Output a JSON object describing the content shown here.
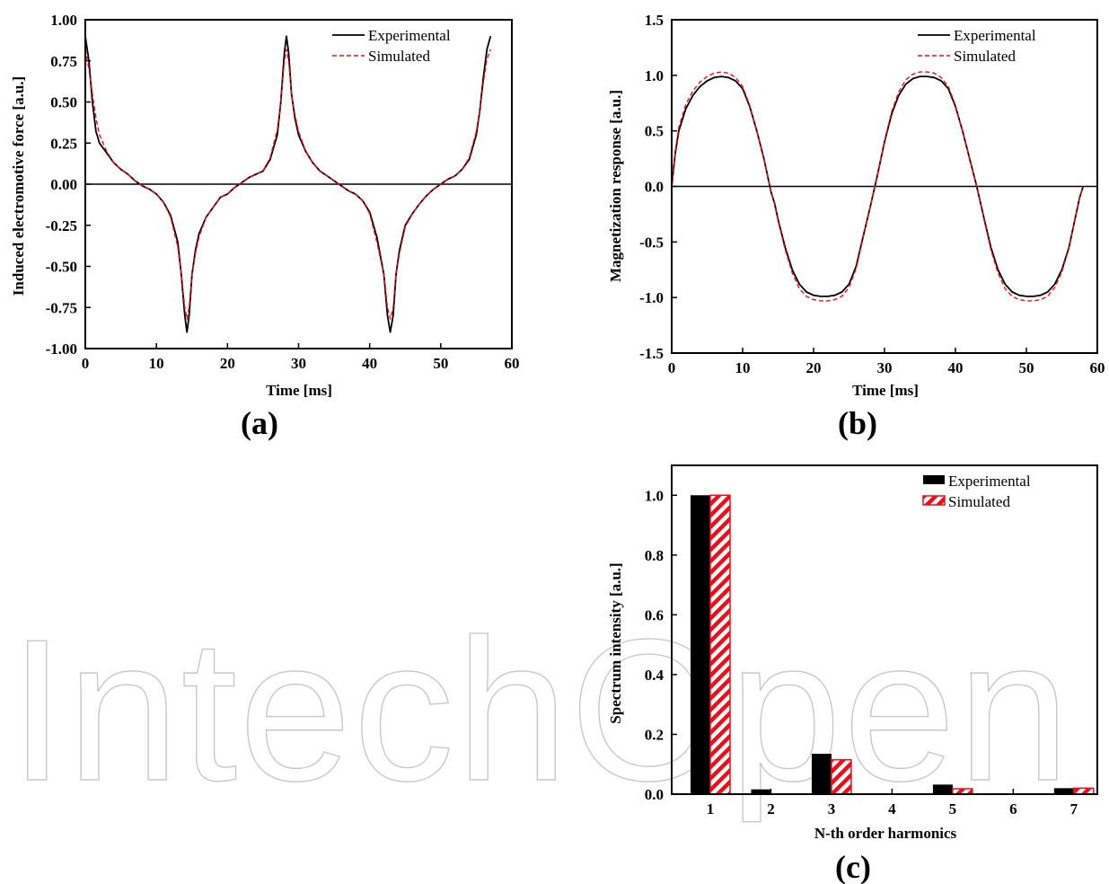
{
  "watermark": "IntechOpen",
  "colors": {
    "experimental": "#000000",
    "simulated": "#e8101c"
  },
  "chart_data": [
    {
      "id": "a",
      "type": "line",
      "panel_label": "(a)",
      "xlabel": "Time [ms]",
      "ylabel": "Induced electromotive force [a.u.]",
      "xlim": [
        0,
        60
      ],
      "ylim": [
        -1.0,
        1.0
      ],
      "xticks": [
        "0",
        "10",
        "20",
        "30",
        "40",
        "50",
        "60"
      ],
      "yticks": [
        "-1.00",
        "-0.75",
        "-0.50",
        "-0.25",
        "0.00",
        "0.25",
        "0.50",
        "0.75",
        "1.00"
      ],
      "zero_line": true,
      "legend": {
        "position": "top-right",
        "entries": [
          "Experimental",
          "Simulated"
        ]
      },
      "series": [
        {
          "name": "Experimental",
          "style": "solid",
          "x": [
            0,
            0.5,
            1,
            1.5,
            2,
            3,
            4,
            5,
            6,
            7,
            8,
            9,
            10,
            11,
            12,
            13,
            13.5,
            14,
            14.3,
            14.6,
            15,
            15.5,
            16,
            17,
            18,
            19,
            20,
            21,
            22,
            23,
            24,
            25,
            26,
            27,
            27.5,
            28,
            28.3,
            28.6,
            29,
            29.5,
            30,
            31,
            32,
            33,
            34,
            35,
            36,
            37,
            38,
            39,
            40,
            41,
            42,
            42.5,
            42.9,
            43.3,
            43.7,
            44.2,
            45,
            46,
            47,
            48,
            49,
            50,
            51,
            52,
            53,
            54,
            55,
            55.5,
            56,
            56.5,
            57
          ],
          "y": [
            0.9,
            0.75,
            0.5,
            0.32,
            0.25,
            0.19,
            0.13,
            0.09,
            0.06,
            0.02,
            -0.01,
            -0.03,
            -0.06,
            -0.11,
            -0.19,
            -0.35,
            -0.55,
            -0.8,
            -0.9,
            -0.8,
            -0.55,
            -0.4,
            -0.3,
            -0.2,
            -0.14,
            -0.08,
            -0.06,
            -0.02,
            0.01,
            0.04,
            0.06,
            0.08,
            0.15,
            0.3,
            0.5,
            0.8,
            0.9,
            0.8,
            0.55,
            0.4,
            0.3,
            0.2,
            0.13,
            0.08,
            0.05,
            0.02,
            -0.01,
            -0.04,
            -0.06,
            -0.1,
            -0.17,
            -0.32,
            -0.55,
            -0.8,
            -0.9,
            -0.8,
            -0.55,
            -0.4,
            -0.25,
            -0.18,
            -0.12,
            -0.07,
            -0.03,
            0.0,
            0.03,
            0.05,
            0.09,
            0.15,
            0.3,
            0.45,
            0.65,
            0.82,
            0.9
          ]
        },
        {
          "name": "Simulated",
          "style": "dashed",
          "x": [
            0,
            0.5,
            1,
            1.5,
            2,
            3,
            4,
            5,
            6,
            7,
            8,
            9,
            10,
            11,
            12,
            13,
            13.5,
            14,
            14.3,
            14.6,
            15,
            15.5,
            16,
            17,
            18,
            19,
            20,
            21,
            22,
            23,
            24,
            25,
            26,
            27,
            27.5,
            28,
            28.3,
            28.6,
            29,
            29.5,
            30,
            31,
            32,
            33,
            34,
            35,
            36,
            37,
            38,
            39,
            40,
            41,
            42,
            42.5,
            42.9,
            43.3,
            43.7,
            44.2,
            45,
            46,
            47,
            48,
            49,
            50,
            51,
            52,
            53,
            54,
            55,
            55.5,
            56,
            56.5,
            57
          ],
          "y": [
            0.82,
            0.7,
            0.55,
            0.4,
            0.3,
            0.2,
            0.13,
            0.09,
            0.06,
            0.02,
            -0.01,
            -0.03,
            -0.06,
            -0.11,
            -0.2,
            -0.38,
            -0.55,
            -0.75,
            -0.82,
            -0.75,
            -0.55,
            -0.42,
            -0.32,
            -0.2,
            -0.14,
            -0.08,
            -0.06,
            -0.02,
            0.01,
            0.04,
            0.06,
            0.08,
            0.16,
            0.33,
            0.5,
            0.75,
            0.82,
            0.75,
            0.55,
            0.42,
            0.32,
            0.2,
            0.13,
            0.08,
            0.05,
            0.02,
            -0.01,
            -0.04,
            -0.06,
            -0.1,
            -0.18,
            -0.35,
            -0.55,
            -0.75,
            -0.82,
            -0.75,
            -0.55,
            -0.42,
            -0.26,
            -0.18,
            -0.12,
            -0.07,
            -0.03,
            0.0,
            0.03,
            0.05,
            0.09,
            0.16,
            0.32,
            0.45,
            0.62,
            0.76,
            0.82
          ]
        }
      ]
    },
    {
      "id": "b",
      "type": "line",
      "panel_label": "(b)",
      "xlabel": "Time [ms]",
      "ylabel": "Magnetization response [a.u.]",
      "xlim": [
        0,
        60
      ],
      "ylim": [
        -1.5,
        1.5
      ],
      "xticks": [
        "0",
        "10",
        "20",
        "30",
        "40",
        "50",
        "60"
      ],
      "yticks": [
        "-1.5",
        "-1.0",
        "-0.5",
        "0.0",
        "0.5",
        "1.0",
        "1.5"
      ],
      "zero_line": true,
      "legend": {
        "position": "top-right",
        "entries": [
          "Experimental",
          "Simulated"
        ]
      },
      "series": [
        {
          "name": "Experimental",
          "style": "solid",
          "x": [
            0,
            0.5,
            1,
            2,
            3,
            4,
            5,
            6,
            7,
            8,
            9,
            10,
            11,
            12,
            13,
            14,
            14.5,
            15,
            16,
            17,
            18,
            19,
            20,
            21,
            22,
            23,
            24,
            25,
            26,
            27,
            28,
            29,
            30,
            31,
            32,
            33,
            34,
            35,
            36,
            37,
            38,
            39,
            40,
            41,
            42,
            43,
            44,
            45,
            46,
            47,
            48,
            49,
            50,
            51,
            52,
            53,
            54,
            55,
            56,
            57,
            57.5,
            58
          ],
          "y": [
            0.0,
            0.3,
            0.5,
            0.7,
            0.82,
            0.9,
            0.95,
            0.98,
            0.99,
            0.98,
            0.95,
            0.88,
            0.72,
            0.5,
            0.25,
            -0.05,
            -0.15,
            -0.3,
            -0.55,
            -0.75,
            -0.88,
            -0.95,
            -0.98,
            -0.99,
            -0.99,
            -0.98,
            -0.95,
            -0.88,
            -0.72,
            -0.45,
            -0.18,
            0.1,
            0.4,
            0.65,
            0.82,
            0.92,
            0.97,
            0.99,
            0.99,
            0.98,
            0.95,
            0.88,
            0.72,
            0.5,
            0.25,
            0.0,
            -0.28,
            -0.55,
            -0.75,
            -0.88,
            -0.95,
            -0.98,
            -0.99,
            -0.99,
            -0.98,
            -0.95,
            -0.88,
            -0.75,
            -0.55,
            -0.25,
            -0.1,
            0.0
          ]
        },
        {
          "name": "Simulated",
          "style": "dashed",
          "x": [
            0,
            0.5,
            1,
            2,
            3,
            4,
            5,
            6,
            7,
            8,
            9,
            10,
            11,
            12,
            13,
            14,
            14.5,
            15,
            16,
            17,
            18,
            19,
            20,
            21,
            22,
            23,
            24,
            25,
            26,
            27,
            28,
            29,
            30,
            31,
            32,
            33,
            34,
            35,
            36,
            37,
            38,
            39,
            40,
            41,
            42,
            43,
            44,
            45,
            46,
            47,
            48,
            49,
            50,
            51,
            52,
            53,
            54,
            55,
            56,
            57,
            57.5,
            58
          ],
          "y": [
            0.0,
            0.32,
            0.53,
            0.74,
            0.86,
            0.94,
            0.99,
            1.02,
            1.03,
            1.02,
            0.98,
            0.9,
            0.73,
            0.5,
            0.25,
            -0.05,
            -0.16,
            -0.31,
            -0.57,
            -0.78,
            -0.92,
            -0.99,
            -1.02,
            -1.03,
            -1.03,
            -1.02,
            -0.99,
            -0.91,
            -0.74,
            -0.46,
            -0.18,
            0.1,
            0.41,
            0.67,
            0.85,
            0.96,
            1.01,
            1.03,
            1.03,
            1.02,
            0.98,
            0.9,
            0.73,
            0.5,
            0.25,
            0.0,
            -0.29,
            -0.57,
            -0.78,
            -0.92,
            -0.99,
            -1.02,
            -1.03,
            -1.03,
            -1.02,
            -0.99,
            -0.91,
            -0.77,
            -0.56,
            -0.25,
            -0.1,
            0.0
          ]
        }
      ]
    },
    {
      "id": "c",
      "type": "bar",
      "panel_label": "(c)",
      "xlabel": "N-th order harmonics",
      "ylabel": "Spectrum intensity [a.u.]",
      "categories": [
        "1",
        "2",
        "3",
        "4",
        "5",
        "6",
        "7"
      ],
      "ylim": [
        0,
        1.1
      ],
      "yticks": [
        "0.0",
        "0.2",
        "0.4",
        "0.6",
        "0.8",
        "1.0"
      ],
      "legend": {
        "position": "top-right",
        "entries": [
          "Experimental",
          "Simulated"
        ]
      },
      "series": [
        {
          "name": "Experimental",
          "fill": "solid",
          "values": [
            1.0,
            0.016,
            0.135,
            0.0,
            0.032,
            0.0,
            0.02
          ]
        },
        {
          "name": "Simulated",
          "fill": "hatched",
          "values": [
            1.0,
            0.0,
            0.115,
            0.0,
            0.018,
            0.0,
            0.02
          ]
        }
      ]
    }
  ]
}
